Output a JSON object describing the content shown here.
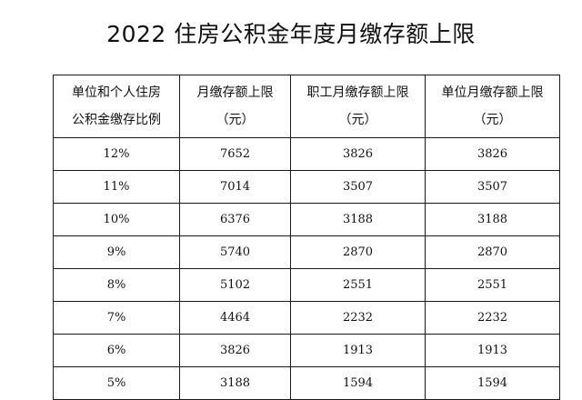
{
  "title": "2022 住房公积金年度月缴存额上限",
  "table": {
    "headers": [
      {
        "line1": "单位和个人住房",
        "line2": "公积金缴存比例"
      },
      {
        "line1": "月缴存额上限",
        "line2": "（元）"
      },
      {
        "line1": "职工月缴存额上限",
        "line2": "（元）"
      },
      {
        "line1": "单位月缴存额上限",
        "line2": "（元）"
      }
    ],
    "rows": [
      {
        "rate": "12%",
        "total": "7652",
        "employee": "3826",
        "employer": "3826"
      },
      {
        "rate": "11%",
        "total": "7014",
        "employee": "3507",
        "employer": "3507"
      },
      {
        "rate": "10%",
        "total": "6376",
        "employee": "3188",
        "employer": "3188"
      },
      {
        "rate": "9%",
        "total": "5740",
        "employee": "2870",
        "employer": "2870"
      },
      {
        "rate": "8%",
        "total": "5102",
        "employee": "2551",
        "employer": "2551"
      },
      {
        "rate": "7%",
        "total": "4464",
        "employee": "2232",
        "employer": "2232"
      },
      {
        "rate": "6%",
        "total": "3826",
        "employee": "1913",
        "employer": "1913"
      },
      {
        "rate": "5%",
        "total": "3188",
        "employee": "1594",
        "employer": "1594"
      }
    ]
  }
}
